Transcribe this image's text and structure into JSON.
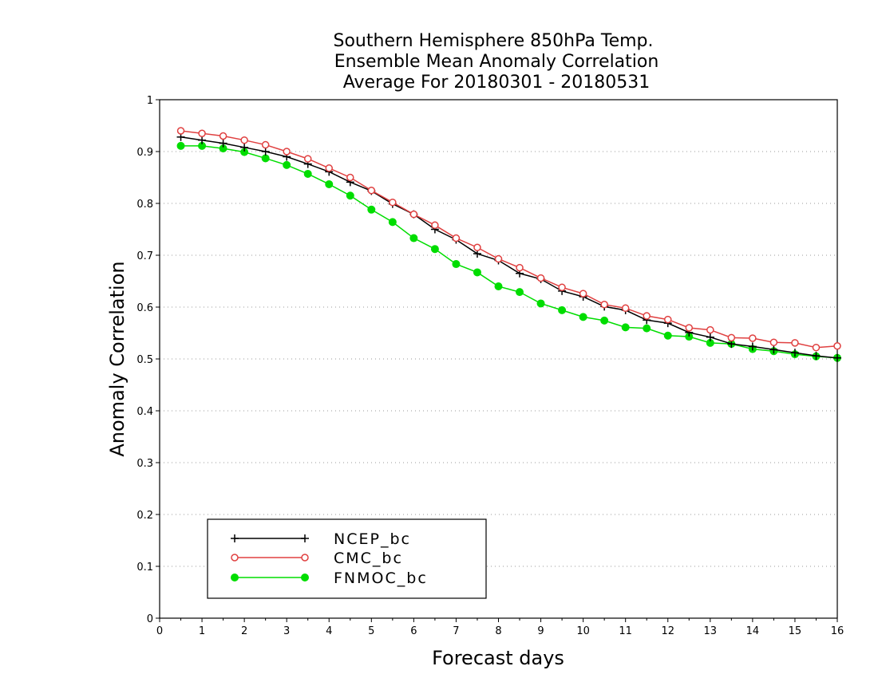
{
  "chart_data": {
    "type": "line",
    "title": [
      "Southern Hemisphere 850hPa Temp.",
      "Ensemble Mean Anomaly Correlation",
      "Average For 20180301 - 20180531"
    ],
    "xlabel": "Forecast days",
    "ylabel": "Anomaly Correlation",
    "xlim": [
      0,
      16
    ],
    "ylim": [
      0,
      1
    ],
    "xticks": [
      "0",
      "1",
      "2",
      "3",
      "4",
      "5",
      "6",
      "7",
      "8",
      "9",
      "10",
      "11",
      "12",
      "13",
      "14",
      "15",
      "16"
    ],
    "yticks": [
      "0",
      "0.1",
      "0.2",
      "0.3",
      "0.4",
      "0.5",
      "0.6",
      "0.7",
      "0.8",
      "0.9",
      "1"
    ],
    "grid": "horizontal dotted",
    "legend_position": "bottom-left",
    "x": [
      0.5,
      1,
      1.5,
      2,
      2.5,
      3,
      3.5,
      4,
      4.5,
      5,
      5.5,
      6,
      6.5,
      7,
      7.5,
      8,
      8.5,
      9,
      9.5,
      10,
      10.5,
      11,
      11.5,
      12,
      12.5,
      13,
      13.5,
      14,
      14.5,
      15,
      15.5,
      16
    ],
    "series": [
      {
        "name": "NCEP_bc",
        "color": "#000000",
        "marker": "plus",
        "values": [
          0.928,
          0.922,
          0.916,
          0.908,
          0.9,
          0.89,
          0.876,
          0.861,
          0.841,
          0.824,
          0.799,
          0.779,
          0.75,
          0.73,
          0.703,
          0.69,
          0.665,
          0.654,
          0.631,
          0.62,
          0.601,
          0.594,
          0.575,
          0.569,
          0.551,
          0.542,
          0.529,
          0.524,
          0.518,
          0.512,
          0.506,
          0.502
        ]
      },
      {
        "name": "CMC_bc",
        "color": "#e04040",
        "marker": "open-circle",
        "values": [
          0.94,
          0.935,
          0.93,
          0.922,
          0.913,
          0.9,
          0.886,
          0.868,
          0.85,
          0.825,
          0.802,
          0.779,
          0.758,
          0.733,
          0.715,
          0.693,
          0.676,
          0.656,
          0.638,
          0.626,
          0.605,
          0.598,
          0.583,
          0.576,
          0.56,
          0.556,
          0.541,
          0.54,
          0.532,
          0.531,
          0.522,
          0.525
        ]
      },
      {
        "name": "FNMOC_bc",
        "color": "#00dd00",
        "marker": "filled-circle",
        "values": [
          0.911,
          0.911,
          0.906,
          0.899,
          0.887,
          0.874,
          0.857,
          0.837,
          0.815,
          0.788,
          0.764,
          0.733,
          0.712,
          0.683,
          0.667,
          0.64,
          0.629,
          0.607,
          0.594,
          0.581,
          0.574,
          0.561,
          0.559,
          0.545,
          0.543,
          0.531,
          0.529,
          0.519,
          0.515,
          0.509,
          0.505,
          0.502
        ]
      }
    ]
  }
}
